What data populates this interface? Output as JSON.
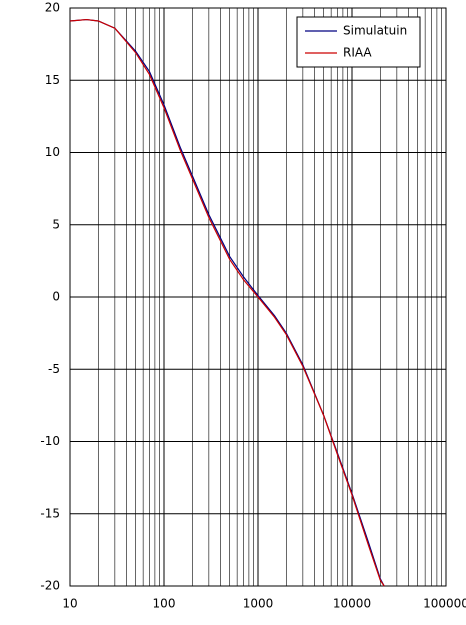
{
  "chart_data": {
    "type": "line",
    "log_x": true,
    "grid": true,
    "legend": "top-right",
    "x": [
      10,
      15,
      20,
      30,
      50,
      70,
      100,
      150,
      200,
      300,
      500,
      700,
      1000,
      1500,
      2000,
      3000,
      5000,
      7000,
      10000,
      15000,
      20000,
      22000
    ],
    "series": [
      {
        "name": "Simulatuin",
        "color": "#000080",
        "values": [
          19.1,
          19.2,
          19.1,
          18.6,
          17.0,
          15.6,
          13.3,
          10.3,
          8.4,
          5.7,
          2.8,
          1.4,
          0.1,
          -1.3,
          -2.5,
          -4.7,
          -8.2,
          -10.8,
          -13.6,
          -17.0,
          -19.5,
          -20
        ]
      },
      {
        "name": "RIAA",
        "color": "#cc0000",
        "values": [
          19.1,
          19.2,
          19.1,
          18.6,
          16.9,
          15.4,
          13.1,
          10.1,
          8.2,
          5.5,
          2.6,
          1.2,
          0.0,
          -1.4,
          -2.6,
          -4.8,
          -8.2,
          -10.9,
          -13.7,
          -17.2,
          -19.6,
          -20
        ]
      }
    ],
    "xlim": [
      10,
      100000
    ],
    "xticks": [
      10,
      100,
      1000,
      10000,
      100000
    ],
    "ylim": [
      -20,
      20
    ],
    "yticks": [
      -20,
      -15,
      -10,
      -5,
      0,
      5,
      10,
      15,
      20
    ]
  }
}
